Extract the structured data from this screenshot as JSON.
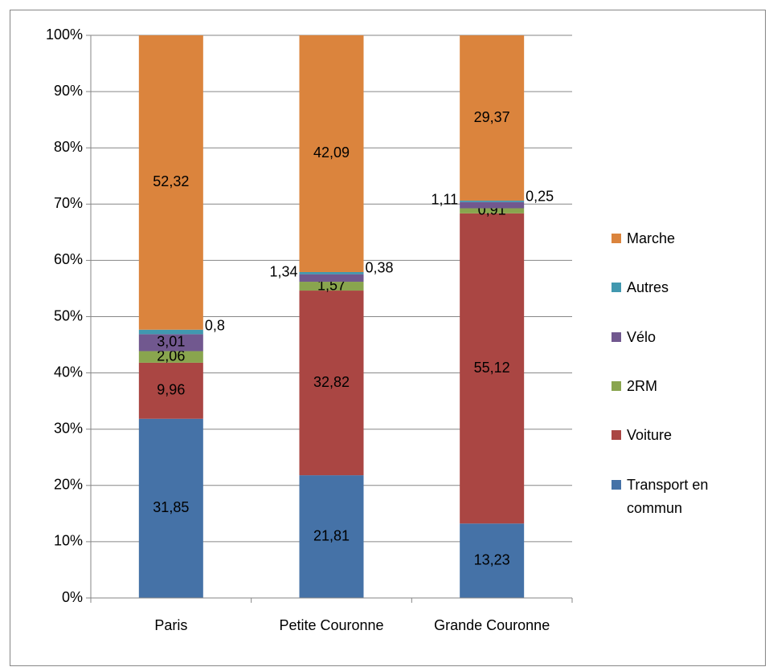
{
  "chart_data": {
    "type": "stacked_bar",
    "categories": [
      "Paris",
      "Petite Couronne",
      "Grande Couronne"
    ],
    "series": [
      {
        "name": "Transport en commun",
        "color": "#4572a7",
        "values": [
          31.85,
          21.81,
          13.23
        ],
        "value_labels": [
          "31,85",
          "21,81",
          "13,23"
        ]
      },
      {
        "name": "Voiture",
        "color": "#aa4643",
        "values": [
          9.96,
          32.82,
          55.12
        ],
        "value_labels": [
          "9,96",
          "32,82",
          "55,12"
        ]
      },
      {
        "name": "2RM",
        "color": "#89a54e",
        "values": [
          2.06,
          1.57,
          0.91
        ],
        "value_labels": [
          "2,06",
          "1,57",
          "0,91"
        ]
      },
      {
        "name": "Vélo",
        "color": "#71588f",
        "values": [
          3.01,
          1.34,
          1.11
        ],
        "value_labels": [
          "3,01",
          "1,34",
          "1,11"
        ]
      },
      {
        "name": "Autres",
        "color": "#4198af",
        "values": [
          0.8,
          0.38,
          0.25
        ],
        "value_labels": [
          "0,8",
          "0,38",
          "0,25"
        ]
      },
      {
        "name": "Marche",
        "color": "#db843d",
        "values": [
          52.32,
          42.09,
          29.37
        ],
        "value_labels": [
          "52,32",
          "42,09",
          "29,37"
        ]
      }
    ],
    "ylim": [
      0,
      100
    ],
    "yticks": [
      {
        "value": 0,
        "label": "0%"
      },
      {
        "value": 10,
        "label": "10%"
      },
      {
        "value": 20,
        "label": "20%"
      },
      {
        "value": 30,
        "label": "30%"
      },
      {
        "value": 40,
        "label": "40%"
      },
      {
        "value": 50,
        "label": "50%"
      },
      {
        "value": 60,
        "label": "60%"
      },
      {
        "value": 70,
        "label": "70%"
      },
      {
        "value": 80,
        "label": "80%"
      },
      {
        "value": 90,
        "label": "90%"
      },
      {
        "value": 100,
        "label": "100%"
      }
    ],
    "grid": true,
    "legend": "right"
  }
}
